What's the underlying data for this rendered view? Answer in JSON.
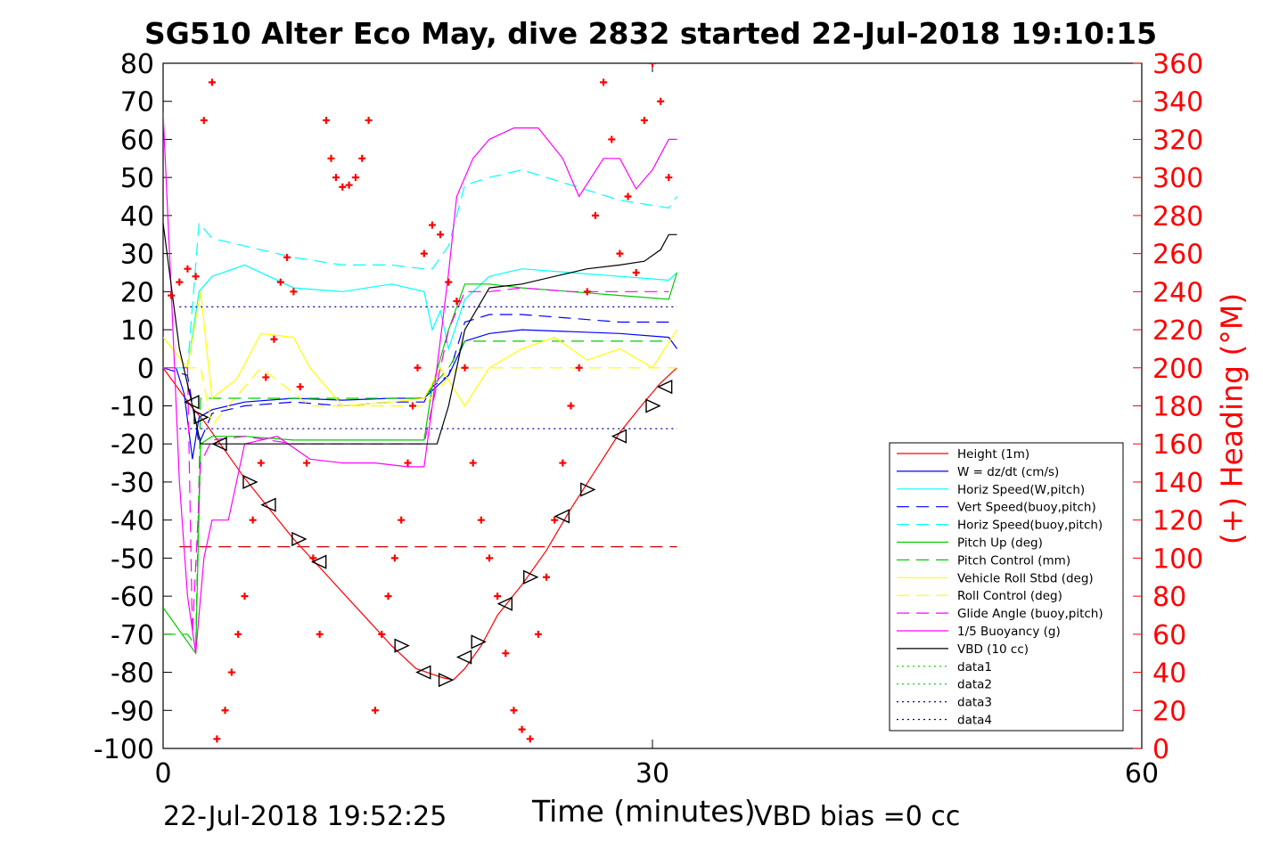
{
  "chart_data": {
    "type": "line",
    "title": "SG510 Alter Eco May, dive 2832 started 22-Jul-2018 19:10:15",
    "xlabel": "Time (minutes)",
    "ylabel_right": "(+) Heading (°M)",
    "xlim": [
      0,
      60
    ],
    "ylim": [
      -100,
      80
    ],
    "ylim_right": [
      0,
      360
    ],
    "x_ticks": [
      "0",
      "30",
      "60"
    ],
    "y_ticks": [
      "80",
      "70",
      "60",
      "50",
      "40",
      "30",
      "20",
      "10",
      "0",
      "-10",
      "-20",
      "-30",
      "-40",
      "-50",
      "-60",
      "-70",
      "-80",
      "-90",
      "-100"
    ],
    "y_ticks_right": [
      "360",
      "340",
      "320",
      "300",
      "280",
      "260",
      "240",
      "220",
      "200",
      "180",
      "160",
      "140",
      "120",
      "100",
      "80",
      "60",
      "40",
      "20",
      "0"
    ],
    "legend_position": "bottom-right",
    "series": [
      {
        "name": "Height (1m)",
        "color": "#ff0000",
        "style": "solid",
        "x": [
          0,
          1.7,
          2.5,
          3.5,
          5,
          6.5,
          8,
          9.5,
          11,
          12.5,
          14,
          15.5,
          16.5,
          17.2,
          17.8,
          18.5,
          19.5,
          20.5,
          22,
          23.5,
          25,
          26.5,
          28,
          29.5,
          30.5,
          31.5
        ],
        "values": [
          0,
          -10,
          -14,
          -20,
          -29,
          -37,
          -45,
          -52,
          -59,
          -66,
          -73,
          -79,
          -80.5,
          -81.5,
          -82,
          -79,
          -73,
          -65,
          -57,
          -48,
          -37,
          -27,
          -17,
          -9,
          -4,
          0
        ]
      },
      {
        "name": "W = dz/dt (cm/s)",
        "color": "#0000ff",
        "style": "solid",
        "x": [
          0,
          0.8,
          1.3,
          1.8,
          2.2,
          3,
          5,
          8,
          11,
          14,
          16,
          16.5,
          17.5,
          18.5,
          20,
          22,
          25,
          28,
          31,
          31.5
        ],
        "values": [
          0,
          0,
          -7,
          -24,
          -13,
          -11,
          -9,
          -8,
          -8.5,
          -8,
          -8,
          -6,
          -2,
          7,
          9,
          10,
          9.5,
          9,
          8,
          5
        ]
      },
      {
        "name": "Horiz Speed(W,pitch)",
        "color": "#00ffff",
        "style": "solid",
        "x": [
          0,
          1.5,
          2.2,
          3,
          5,
          8,
          11,
          14,
          16,
          16.5,
          17,
          17.5,
          18.5,
          20,
          22,
          25,
          28,
          31,
          31.5
        ],
        "values": [
          0,
          0,
          20,
          24,
          27,
          21,
          20,
          22,
          20,
          10,
          15,
          5,
          18,
          24,
          26,
          25,
          24,
          23,
          25
        ]
      },
      {
        "name": "Vert Speed(buoy,pitch)",
        "color": "#0000ff",
        "style": "dashed",
        "x": [
          0,
          1.5,
          2.2,
          3,
          5,
          8,
          11,
          14,
          16,
          16.5,
          17.5,
          18.5,
          20,
          22,
          25,
          28,
          31
        ],
        "values": [
          0,
          -2,
          -20,
          -12,
          -10,
          -9,
          -10,
          -9,
          -9,
          -5,
          -2,
          12,
          14,
          14,
          13,
          12,
          12
        ]
      },
      {
        "name": "Horiz Speed(buoy,pitch)",
        "color": "#00ffff",
        "style": "dashed",
        "x": [
          0,
          1.5,
          2.2,
          3,
          5,
          8,
          11,
          14,
          16,
          16.5,
          17.5,
          18.5,
          20,
          22,
          25,
          28,
          31,
          31.5
        ],
        "values": [
          0,
          0,
          38,
          34,
          32,
          29,
          27,
          27,
          26,
          26,
          32,
          48,
          50,
          52,
          48,
          44,
          42,
          45
        ]
      },
      {
        "name": "Pitch Up (deg)",
        "color": "#00cc00",
        "style": "solid",
        "x": [
          0,
          1.5,
          2,
          2.3,
          3,
          5,
          8,
          11,
          14,
          16,
          16.5,
          17.5,
          18.5,
          20,
          22,
          25,
          28,
          31,
          31.5
        ],
        "values": [
          -63,
          -72,
          -75,
          -20,
          -18,
          -18,
          -19,
          -19,
          -19,
          -19,
          -5,
          10,
          22,
          22,
          21,
          20,
          19,
          18,
          25
        ]
      },
      {
        "name": "Pitch Control (mm)",
        "color": "#00cc00",
        "style": "dashed",
        "x": [
          0,
          1.5,
          2,
          2.3,
          3,
          16,
          16.5,
          17.5,
          18.5,
          31
        ],
        "values": [
          -70,
          -70,
          -73,
          -8,
          -8,
          -8,
          -5,
          0,
          7,
          7
        ]
      },
      {
        "name": "Vehicle Roll Stbd (deg)",
        "color": "#ffff00",
        "style": "solid",
        "x": [
          0,
          1.5,
          2.3,
          3,
          4.5,
          6,
          8,
          9,
          11,
          14,
          16,
          17,
          18.5,
          20,
          22,
          24,
          26,
          28,
          30,
          31.5
        ],
        "values": [
          8,
          0,
          20,
          -8,
          -3,
          9,
          8,
          0,
          -10,
          -9,
          -8,
          0,
          -10,
          0,
          5,
          8,
          2,
          5,
          0,
          10
        ]
      },
      {
        "name": "Roll Control (deg)",
        "color": "#ffff00",
        "style": "dashed",
        "x": [
          0,
          2.3,
          3,
          6,
          9,
          16,
          18,
          22,
          26,
          30,
          31.5
        ],
        "values": [
          0,
          0,
          -15,
          0,
          -10,
          -10,
          0,
          0,
          0,
          0,
          0
        ]
      },
      {
        "name": "Glide Angle (buoy,pitch)",
        "color": "#ff00ff",
        "style": "dashed",
        "x": [
          0,
          1.5,
          1.8,
          2.3,
          3,
          5,
          8,
          11,
          14,
          16,
          16.5,
          17.5,
          18.5,
          20,
          22,
          25,
          28,
          31
        ],
        "values": [
          0,
          0,
          -70,
          -25,
          -19,
          -18,
          -20,
          -20,
          -20,
          -20,
          -10,
          10,
          20,
          20,
          21,
          20,
          20,
          20
        ]
      },
      {
        "name": "1/5 Buoyancy (g)",
        "color": "#ff00ff",
        "style": "solid",
        "x": [
          0,
          0.5,
          1,
          1.5,
          2,
          2.5,
          3,
          4,
          5,
          7,
          9,
          11,
          13,
          15,
          16,
          16.5,
          17.5,
          18,
          19,
          20,
          21.5,
          23,
          24.5,
          25.5,
          27,
          28,
          29,
          30,
          31,
          31.5
        ],
        "values": [
          67,
          20,
          -30,
          -60,
          -75,
          -50,
          -40,
          -40,
          -20,
          -18,
          -24,
          -25,
          -25,
          -26,
          -26,
          -10,
          25,
          45,
          55,
          60,
          63,
          63,
          55,
          45,
          55,
          55,
          47,
          52,
          60,
          60
        ]
      },
      {
        "name": "VBD (10 cc)",
        "color": "#000000",
        "style": "solid",
        "x": [
          0,
          1,
          1.8,
          2.3,
          16,
          16.8,
          17.5,
          18.5,
          20,
          22,
          24,
          26,
          28,
          29.5,
          30.5,
          31,
          31.5
        ],
        "values": [
          38,
          5,
          -10,
          -20,
          -20,
          -20,
          -10,
          10,
          21,
          22,
          24,
          26,
          27,
          28,
          31,
          35,
          35
        ]
      },
      {
        "name": "data1",
        "color": "#00cc00",
        "style": "dotted",
        "x": [],
        "values": []
      },
      {
        "name": "data2",
        "color": "#00cc00",
        "style": "dotted",
        "x": [],
        "values": []
      },
      {
        "name": "data3",
        "color": "#0000aa",
        "style": "dotted",
        "x": [
          1,
          31.5
        ],
        "values": [
          -16,
          -16
        ]
      },
      {
        "name": "data4",
        "color": "#0000aa",
        "style": "dotted",
        "x": [
          1,
          31.5
        ],
        "values": [
          16,
          16
        ]
      }
    ],
    "reference_lines": [
      {
        "color": "#cc0000",
        "style": "dashed",
        "x": [
          1,
          31.5
        ],
        "values": [
          -47,
          -47
        ]
      }
    ],
    "heading_points": {
      "name": "(+) Heading (°M)",
      "color": "#ff0000",
      "marker": "+",
      "x": [
        0.5,
        1,
        1.5,
        2,
        2.5,
        3,
        3.3,
        3.8,
        4.2,
        4.6,
        5,
        5.5,
        6,
        6.3,
        6.8,
        7.2,
        7.6,
        8,
        8.4,
        8.8,
        9.2,
        9.6,
        10,
        10.3,
        10.6,
        11,
        11.4,
        11.8,
        12.2,
        12.6,
        13,
        13.4,
        13.8,
        14.2,
        14.6,
        15,
        15.3,
        15.6,
        16,
        16.5,
        17,
        17.5,
        18,
        18.5,
        19,
        19.5,
        20,
        20.5,
        21,
        21.5,
        22,
        22.5,
        23,
        23.5,
        24,
        24.5,
        25,
        25.5,
        26,
        26.5,
        27,
        27.5,
        28,
        28.5,
        29,
        29.5,
        30,
        30.5,
        31
      ],
      "values": [
        238,
        245,
        252,
        248,
        330,
        350,
        5,
        20,
        40,
        60,
        80,
        120,
        150,
        195,
        215,
        245,
        258,
        240,
        190,
        150,
        100,
        60,
        330,
        310,
        300,
        295,
        296,
        300,
        310,
        330,
        20,
        60,
        80,
        100,
        120,
        150,
        180,
        200,
        260,
        275,
        270,
        245,
        235,
        200,
        150,
        120,
        100,
        80,
        50,
        20,
        10,
        5,
        60,
        90,
        120,
        150,
        180,
        200,
        240,
        280,
        350,
        320,
        260,
        290,
        250,
        330,
        360,
        340,
        300
      ]
    },
    "triangle_markers": {
      "color": "#000000",
      "x": [
        1.8,
        2.3,
        3.5,
        5.3,
        6.5,
        8.3,
        9.6,
        14.6,
        16,
        17.3,
        18.5,
        19.3,
        21,
        22.5,
        24.5,
        26,
        28,
        30,
        30.8
      ],
      "values": [
        -9,
        -13,
        -20,
        -30,
        -36,
        -45,
        -51,
        -73,
        -80,
        -82,
        -76,
        -72,
        -62,
        -55,
        -39,
        -32,
        -18,
        -10,
        -5
      ]
    },
    "legend": [
      "Height (1m)",
      "W = dz/dt (cm/s)",
      "Horiz Speed(W,pitch)",
      "Vert Speed(buoy,pitch)",
      "Horiz Speed(buoy,pitch)",
      "Pitch Up (deg)",
      "Pitch Control (mm)",
      "Vehicle Roll Stbd (deg)",
      "Roll Control (deg)",
      "Glide Angle (buoy,pitch)",
      "1/5 Buoyancy (g)",
      "VBD (10 cc)",
      "data1",
      "data2",
      "data3",
      "data4"
    ]
  },
  "footer": {
    "date": "22-Jul-2018 19:52:25",
    "vbd_bias": "VBD bias =0 cc"
  }
}
